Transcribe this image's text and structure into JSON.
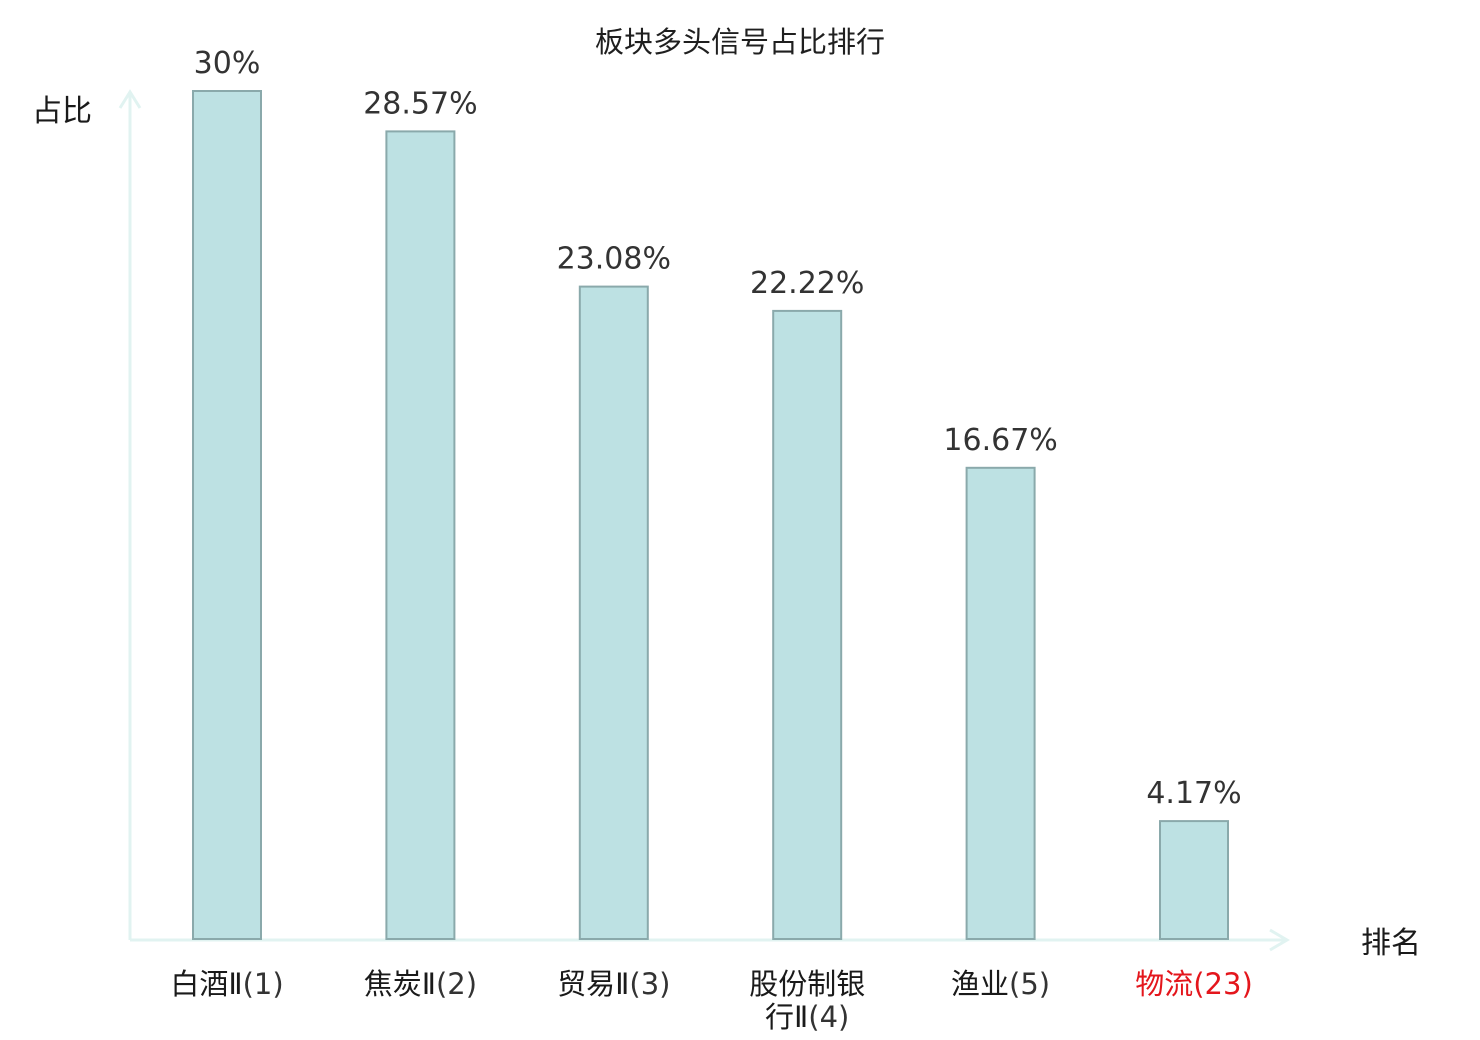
{
  "chart_data": {
    "type": "bar",
    "title": "板块多头信号占比排行",
    "ylabel": "占比",
    "xlabel": "排名",
    "ylim": [
      0,
      30
    ],
    "grid": false,
    "legend": "none",
    "categories": [
      {
        "name_lines": [
          "白酒Ⅱ"
        ],
        "rank": "(1)",
        "highlight": false
      },
      {
        "name_lines": [
          "焦炭Ⅱ"
        ],
        "rank": "(2)",
        "highlight": false
      },
      {
        "name_lines": [
          "贸易Ⅱ"
        ],
        "rank": "(3)",
        "highlight": false
      },
      {
        "name_lines": [
          "股份制银",
          "行Ⅱ"
        ],
        "rank": "(4)",
        "highlight": false
      },
      {
        "name_lines": [
          "渔业"
        ],
        "rank": "(5)",
        "highlight": false
      },
      {
        "name_lines": [
          "物流"
        ],
        "rank": "(23)",
        "highlight": true
      }
    ],
    "values": [
      30,
      28.57,
      23.08,
      22.22,
      16.67,
      4.17
    ],
    "value_labels": [
      "30%",
      "28.57%",
      "23.08%",
      "22.22%",
      "16.67%",
      "4.17%"
    ],
    "colors": {
      "bar_fill": "#bde1e3",
      "bar_stroke": "#8aa9ab",
      "axis": "#e1f3f1",
      "highlight_text": "#e4161c"
    }
  }
}
